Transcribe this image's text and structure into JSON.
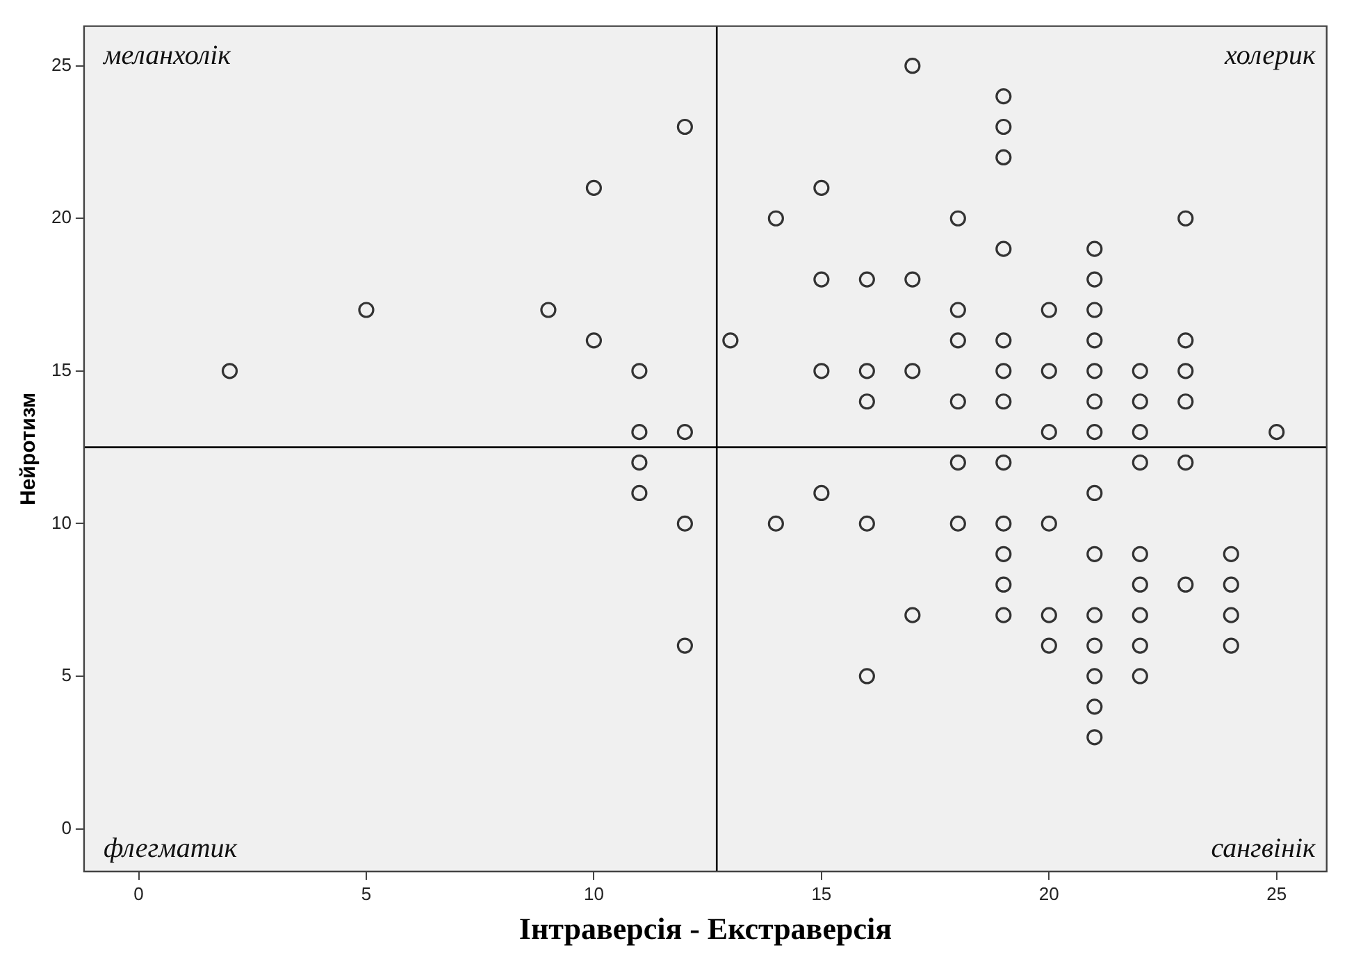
{
  "chart_data": {
    "type": "scatter",
    "xlabel": "Інтраверсія - Екстраверсія",
    "ylabel": "Нейротизм",
    "annotations": [
      "меланхолік",
      "холерик",
      "флегматик",
      "сангвінік"
    ],
    "x": [
      2,
      5,
      9,
      10,
      10,
      11,
      11,
      12,
      12,
      11,
      11,
      12,
      12,
      17,
      19,
      19,
      19,
      15,
      14,
      18,
      23,
      19,
      21,
      15,
      16,
      17,
      21,
      18,
      20,
      21,
      13,
      18,
      19,
      21,
      23,
      15,
      16,
      17,
      19,
      20,
      21,
      22,
      23,
      16,
      18,
      19,
      21,
      22,
      23,
      20,
      21,
      22,
      25,
      18,
      19,
      22,
      23,
      15,
      21,
      14,
      16,
      18,
      19,
      20,
      19,
      21,
      22,
      24,
      19,
      22,
      23,
      24,
      17,
      19,
      20,
      21,
      22,
      24,
      20,
      21,
      22,
      24,
      16,
      21,
      22,
      21,
      21
    ],
    "values": [
      15,
      17,
      17,
      21,
      16,
      15,
      13,
      23,
      13,
      12,
      11,
      10,
      6,
      25,
      24,
      23,
      22,
      21,
      20,
      20,
      20,
      19,
      19,
      18,
      18,
      18,
      18,
      17,
      17,
      17,
      16,
      16,
      16,
      16,
      16,
      15,
      15,
      15,
      15,
      15,
      15,
      15,
      15,
      14,
      14,
      14,
      14,
      14,
      14,
      13,
      13,
      13,
      13,
      12,
      12,
      12,
      12,
      11,
      11,
      10,
      10,
      10,
      10,
      10,
      9,
      9,
      9,
      9,
      8,
      8,
      8,
      8,
      7,
      7,
      7,
      7,
      7,
      7,
      6,
      6,
      6,
      6,
      5,
      5,
      5,
      4,
      3
    ],
    "color": "#333333",
    "marker": "circle",
    "xlim": [
      -1.2,
      26.1
    ],
    "ylim": [
      -1.4,
      26.3
    ],
    "xticks": [
      0,
      5,
      10,
      15,
      20,
      25
    ],
    "yticks": [
      0,
      5,
      10,
      15,
      20,
      25
    ],
    "ref_lines": [
      {
        "axis": "x",
        "value": 12.7,
        "color": "#000000"
      },
      {
        "axis": "y",
        "value": 12.5,
        "color": "#000000"
      }
    ],
    "grid": false,
    "legend": false
  }
}
